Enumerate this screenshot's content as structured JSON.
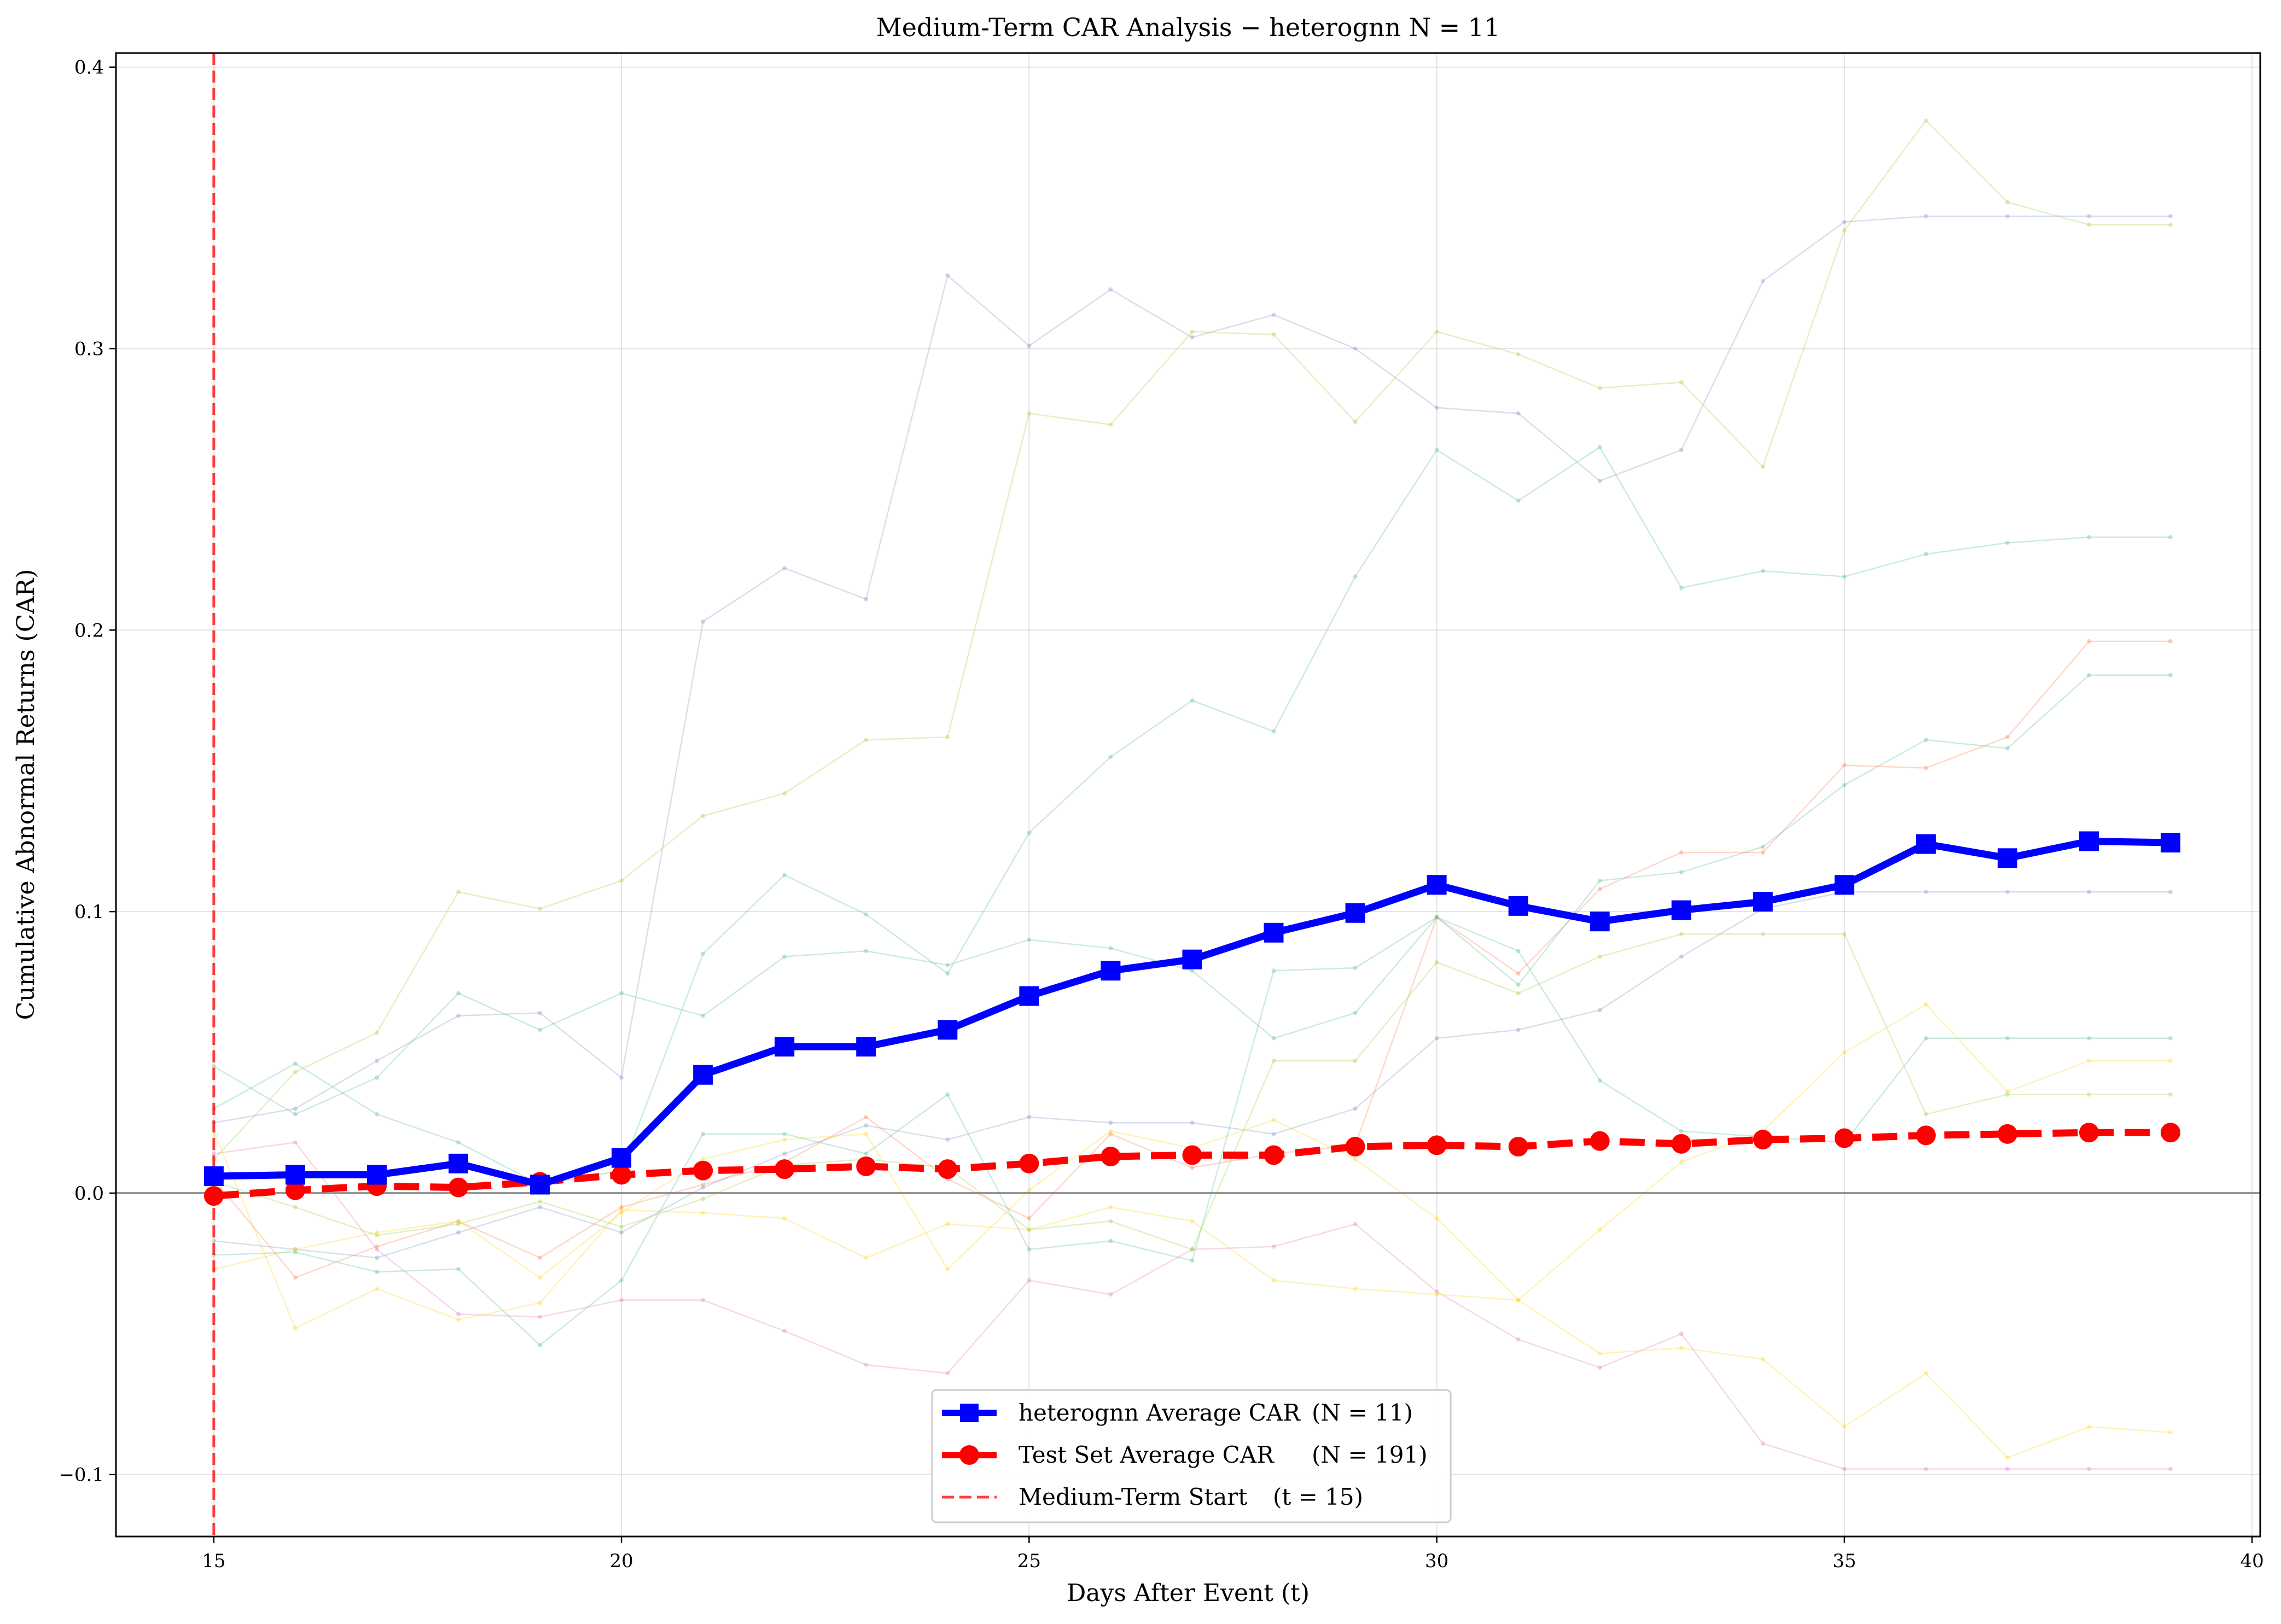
{
  "chart_data": {
    "type": "line",
    "title": "Medium-Term CAR Analysis − heterognn    N = 11",
    "xlabel": "Days After Event (t)",
    "ylabel": "Cumulative Abnormal Returns (CAR)",
    "xlim": [
      13.8,
      40.1
    ],
    "ylim": [
      -0.122,
      0.405
    ],
    "xticks": [
      15,
      20,
      25,
      30,
      35,
      40
    ],
    "xtick_labels": [
      "15",
      "20",
      "25",
      "30",
      "35",
      "40"
    ],
    "yticks": [
      -0.1,
      0.0,
      0.1,
      0.2,
      0.3,
      0.4
    ],
    "ytick_labels": [
      "−0.1",
      "0.0",
      "0.1",
      "0.2",
      "0.3",
      "0.4"
    ],
    "grid": true,
    "legend_position": "bottom-center",
    "x": [
      15,
      16,
      17,
      18,
      19,
      20,
      21,
      22,
      23,
      24,
      25,
      26,
      27,
      28,
      29,
      30,
      31,
      32,
      33,
      34,
      35,
      36,
      37,
      38,
      39
    ],
    "series": [
      {
        "name": "heterognn Average CAR",
        "legend_label": "heterognn Average CAR",
        "legend_n": "(N = 11)",
        "color": "#0000ff",
        "marker": "square",
        "linestyle": "solid",
        "values": [
          0.006,
          0.0065,
          0.0065,
          0.0105,
          0.003,
          0.0125,
          0.042,
          0.052,
          0.052,
          0.058,
          0.07,
          0.079,
          0.083,
          0.0925,
          0.0995,
          0.1095,
          0.102,
          0.0965,
          0.1005,
          0.1035,
          0.1095,
          0.124,
          0.119,
          0.125,
          0.1245
        ]
      },
      {
        "name": "Test Set Average CAR",
        "legend_label": "Test Set Average CAR",
        "legend_n": "(N = 191)",
        "color": "#ff0000",
        "marker": "circle",
        "linestyle": "dashed",
        "values": [
          -0.001,
          0.001,
          0.0025,
          0.002,
          0.004,
          0.0065,
          0.008,
          0.0085,
          0.0095,
          0.0085,
          0.0105,
          0.013,
          0.0135,
          0.0135,
          0.0165,
          0.017,
          0.0165,
          0.0185,
          0.0175,
          0.019,
          0.0195,
          0.0205,
          0.021,
          0.0215,
          0.0215
        ]
      }
    ],
    "reference_lines": [
      {
        "name": "Medium-Term Start",
        "legend_label": "Medium-Term Start",
        "legend_n": "(t = 15)",
        "orientation": "vertical",
        "x": 15,
        "color": "#ff0000",
        "linestyle": "dashed"
      },
      {
        "orientation": "horizontal",
        "y": 0,
        "color": "#808080",
        "linestyle": "solid"
      }
    ],
    "individual_series": [
      {
        "color": "#66c2a5",
        "values": [
          0.03,
          0.046,
          0.028,
          0.018,
          0.003,
          0.008,
          0.085,
          0.113,
          0.099,
          0.078,
          0.128,
          0.155,
          0.175,
          0.164,
          0.219,
          0.264,
          0.246,
          0.265,
          0.215,
          0.221,
          0.219,
          0.227,
          0.231,
          0.233,
          0.233
        ]
      },
      {
        "color": "#8da0cb",
        "values": [
          0.025,
          0.03,
          0.047,
          0.063,
          0.064,
          0.041,
          0.203,
          0.222,
          0.211,
          0.326,
          0.301,
          0.321,
          0.304,
          0.312,
          0.3,
          0.279,
          0.277,
          0.253,
          0.264,
          0.324,
          0.345,
          0.347,
          0.347,
          0.347,
          0.347
        ]
      },
      {
        "color": "#a6d854",
        "values": [
          0.012,
          0.043,
          0.057,
          0.107,
          0.101,
          0.111,
          0.134,
          0.142,
          0.161,
          0.162,
          0.277,
          0.273,
          0.306,
          0.305,
          0.274,
          0.306,
          0.298,
          0.286,
          0.288,
          0.258,
          0.342,
          0.381,
          0.352,
          0.344,
          0.344
        ]
      },
      {
        "color": "#e78ac3",
        "values": [
          0.014,
          0.018,
          -0.02,
          -0.043,
          -0.044,
          -0.038,
          -0.038,
          -0.049,
          -0.061,
          -0.064,
          -0.031,
          -0.036,
          -0.02,
          -0.019,
          -0.011,
          -0.035,
          -0.052,
          -0.062,
          -0.05,
          -0.089,
          -0.098,
          -0.098,
          -0.098,
          -0.098,
          -0.098
        ]
      },
      {
        "color": "#ffd92f",
        "values": [
          0.022,
          -0.048,
          -0.034,
          -0.045,
          -0.039,
          -0.006,
          -0.007,
          -0.009,
          -0.023,
          -0.011,
          -0.013,
          -0.005,
          -0.01,
          -0.031,
          -0.034,
          -0.036,
          -0.038,
          -0.057,
          -0.055,
          -0.059,
          -0.083,
          -0.064,
          -0.094,
          -0.083,
          -0.085
        ]
      },
      {
        "color": "#66c2a5",
        "values": [
          0.045,
          0.028,
          0.041,
          0.071,
          0.058,
          0.071,
          0.063,
          0.084,
          0.086,
          0.081,
          0.09,
          0.087,
          0.079,
          0.055,
          0.064,
          0.098,
          0.086,
          0.04,
          0.022,
          0.02,
          0.018,
          0.055,
          0.055,
          0.055,
          0.055
        ]
      },
      {
        "color": "#8da0cb",
        "values": [
          -0.017,
          -0.02,
          -0.023,
          -0.014,
          -0.005,
          -0.014,
          0.002,
          0.014,
          0.024,
          0.019,
          0.027,
          0.025,
          0.025,
          0.021,
          0.03,
          0.055,
          0.058,
          0.065,
          0.084,
          0.101,
          0.107,
          0.107,
          0.107,
          0.107,
          0.107
        ]
      },
      {
        "color": "#fc8d62",
        "values": [
          0.005,
          -0.03,
          -0.019,
          -0.01,
          -0.023,
          -0.005,
          0.003,
          0.011,
          0.027,
          0.005,
          -0.009,
          0.021,
          0.009,
          0.014,
          0.017,
          0.098,
          0.078,
          0.108,
          0.121,
          0.121,
          0.152,
          0.151,
          0.162,
          0.196,
          0.196
        ]
      },
      {
        "color": "#ffd92f",
        "values": [
          -0.027,
          -0.02,
          -0.014,
          -0.01,
          -0.03,
          -0.007,
          0.012,
          0.019,
          0.021,
          -0.027,
          0.001,
          0.022,
          0.016,
          0.026,
          0.012,
          -0.009,
          -0.038,
          -0.013,
          0.011,
          0.022,
          0.05,
          0.067,
          0.036,
          0.047,
          0.047
        ]
      },
      {
        "color": "#66c2a5",
        "values": [
          -0.022,
          -0.021,
          -0.028,
          -0.027,
          -0.054,
          -0.031,
          0.021,
          0.021,
          0.014,
          0.035,
          -0.02,
          -0.017,
          -0.024,
          0.079,
          0.08,
          0.098,
          0.074,
          0.111,
          0.114,
          0.123,
          0.145,
          0.161,
          0.158,
          0.184,
          0.184
        ]
      },
      {
        "color": "#a6d854",
        "values": [
          0.004,
          -0.005,
          -0.015,
          -0.011,
          -0.003,
          -0.012,
          -0.002,
          0.01,
          0.012,
          0.009,
          -0.013,
          -0.01,
          -0.02,
          0.047,
          0.047,
          0.082,
          0.071,
          0.084,
          0.092,
          0.092,
          0.092,
          0.028,
          0.035,
          0.035,
          0.035
        ]
      }
    ]
  }
}
